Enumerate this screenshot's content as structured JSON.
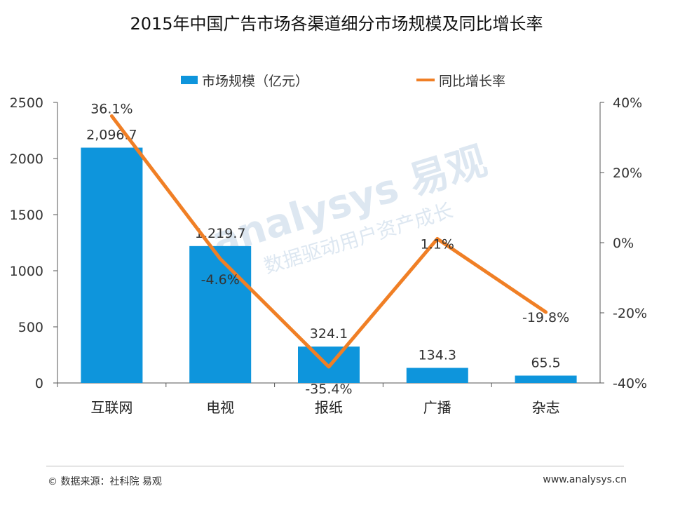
{
  "chart_data": {
    "type": "bar+line",
    "title": "2015年中国广告市场各渠道细分市场规模及同比增长率",
    "categories": [
      "互联网",
      "电视",
      "报纸",
      "广播",
      "杂志"
    ],
    "series": [
      {
        "name": "市场规模（亿元）",
        "type": "bar",
        "axis": "left",
        "color": "#0e95dc",
        "values": [
          2096.7,
          1219.7,
          324.1,
          134.3,
          65.5
        ],
        "labels": [
          "2,096.7",
          "1,219.7",
          "324.1",
          "134.3",
          "65.5"
        ]
      },
      {
        "name": "同比增长率",
        "type": "line",
        "axis": "right",
        "color": "#f07f25",
        "values": [
          36.1,
          -4.6,
          -35.4,
          1.1,
          -19.8
        ],
        "labels": [
          "36.1%",
          "-4.6%",
          "-35.4%",
          "1.1%",
          "-19.8%"
        ]
      }
    ],
    "left_axis": {
      "range": [
        0,
        2500
      ],
      "ticks": [
        0,
        500,
        1000,
        1500,
        2000,
        2500
      ]
    },
    "right_axis": {
      "range": [
        -40,
        40
      ],
      "ticks": [
        -40,
        -20,
        0,
        20,
        40
      ],
      "tick_labels": [
        "-40%",
        "-20%",
        "0%",
        "20%",
        "40%"
      ]
    },
    "legend": "top-center"
  },
  "watermark": {
    "brand": "analysys 易观",
    "slogan": "数据驱动用户资产成长"
  },
  "footer": {
    "source": "© 数据来源：社科院 易观",
    "website": "www.analysys.cn"
  }
}
